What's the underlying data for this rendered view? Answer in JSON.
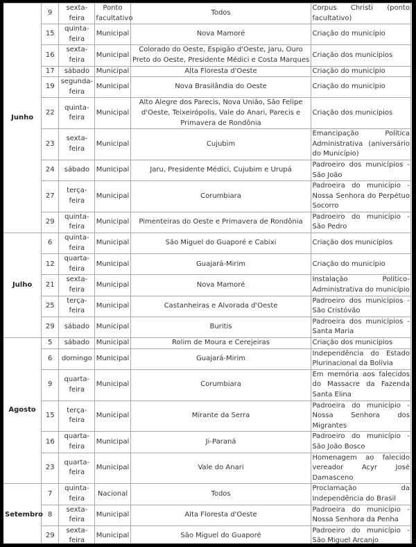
{
  "months": [
    {
      "name": "Junho",
      "rows": [
        {
          "day": "9",
          "weekday": "sexta-feira",
          "type": "Ponto facultativo",
          "municipalities": "Todos",
          "reason": "Corpus Christi (ponto facultativo)"
        },
        {
          "day": "15",
          "weekday": "quinta-feira",
          "type": "Municipal",
          "municipalities": "Nova Mamoré",
          "reason": "Criação do município"
        },
        {
          "day": "16",
          "weekday": "sexta-feira",
          "type": "Municipal",
          "municipalities": "Colorado do Oeste, Espigão d'Oeste, Jaru, Ouro Preto do Oeste, Presidente Médici e Costa Marques",
          "reason": "Criação dos municípios"
        },
        {
          "day": "17",
          "weekday": "sábado",
          "type": "Municipal",
          "municipalities": "Alta Floresta d'Oeste",
          "reason": "Criação do município"
        },
        {
          "day": "19",
          "weekday": "segunda-feira",
          "type": "Municipal",
          "municipalities": "Nova Brasilândia do Oeste",
          "reason": "Criação do município"
        },
        {
          "day": "22",
          "weekday": "quinta-feira",
          "type": "Municipal",
          "municipalities": "Alto Alegre dos Parecis, Nova União, São Felipe d'Oeste, Teixeirópolis, Vale do Anari, Parecis e Primavera de Rondônia",
          "reason": "Criação dos municípios"
        },
        {
          "day": "23",
          "weekday": "sexta-feira",
          "type": "Municipal",
          "municipalities": "Cujubim",
          "reason": "Emancipação Política Administrativa (aniversário do Município)"
        },
        {
          "day": "24",
          "weekday": "sábado",
          "type": "Municipal",
          "municipalities": "Jaru, Presidente Médici, Cujubim e Urupá",
          "reason": "Padroeiro dos municípios - São João"
        },
        {
          "day": "27",
          "weekday": "terça-feira",
          "type": "Municipal",
          "municipalities": "Corumbiara",
          "reason": "Padroeira do município - Nossa Senhora do Perpétuo Socorro"
        },
        {
          "day": "29",
          "weekday": "quinta-feira",
          "type": "Municipal",
          "municipalities": "Pimenteiras do Oeste e Primavera de Rondônia",
          "reason": "Padroeiro do município - São Pedro"
        }
      ]
    },
    {
      "name": "Julho",
      "rows": [
        {
          "day": "6",
          "weekday": "quinta-feira",
          "type": "Municipal",
          "municipalities": "São Miguel do Guaporé e Cabixi",
          "reason": "Criação dos municípios"
        },
        {
          "day": "12",
          "weekday": "quarta-feira",
          "type": "Municipal",
          "municipalities": "Guajará-Mirim",
          "reason": "Criação do município"
        },
        {
          "day": "21",
          "weekday": "sexta-feira",
          "type": "Municipal",
          "municipalities": "Nova Mamoré",
          "reason": "Instalação Político-Administrativa do município"
        },
        {
          "day": "25",
          "weekday": "terça-feira",
          "type": "Municipal",
          "municipalities": "Castanheiras e Alvorada d'Oeste",
          "reason": "Padroeiro dos municípios - São Cristóvão"
        },
        {
          "day": "29",
          "weekday": "sábado",
          "type": "Municipal",
          "municipalities": "Buritis",
          "reason": "Padroeira dos municípios - Santa Maria"
        }
      ]
    },
    {
      "name": "Agosto",
      "rows": [
        {
          "day": "5",
          "weekday": "sábado",
          "type": "Municipal",
          "municipalities": "Rolim de Moura e Cerejeiras",
          "reason": "Criação dos municípios"
        },
        {
          "day": "6",
          "weekday": "domingo",
          "type": "Municipal",
          "municipalities": "Guajará-Mirim",
          "reason": "Independência do Estado Plurinacional da Bolívia"
        },
        {
          "day": "9",
          "weekday": "quarta-feira",
          "type": "Municipal",
          "municipalities": "Corumbiara",
          "reason": "Em memória aos falecidos do Massacre da Fazenda Santa Elina"
        },
        {
          "day": "15",
          "weekday": "terça-feira",
          "type": "Municipal",
          "municipalities": "Mirante da Serra",
          "reason": "Padroeira do município - Nossa Senhora dos Migrantes"
        },
        {
          "day": "16",
          "weekday": "quarta-feira",
          "type": "Municipal",
          "municipalities": "Ji-Paraná",
          "reason": "Padroeiro do município - São João Bosco"
        },
        {
          "day": "23",
          "weekday": "quarta-feira",
          "type": "Municipal",
          "municipalities": "Vale do Anari",
          "reason": "Homenagem ao falecido vereador Acyr José Damasceno"
        }
      ]
    },
    {
      "name": "Setembro",
      "rows": [
        {
          "day": "7",
          "weekday": "quinta-feira",
          "type": "Nacional",
          "municipalities": "Todos",
          "reason": "Proclamação da Independência do Brasil"
        },
        {
          "day": "8",
          "weekday": "sexta-feira",
          "type": "Municipal",
          "municipalities": "Alta Floresta d'Oeste",
          "reason": "Padroeira do município - Nossa Senhora da Penha"
        },
        {
          "day": "29",
          "weekday": "sexta-feira",
          "type": "Municipal",
          "municipalities": "São Miguel do Guaporé",
          "reason": "Padroeiro do município - São Miguel Arcanjo"
        }
      ]
    }
  ]
}
